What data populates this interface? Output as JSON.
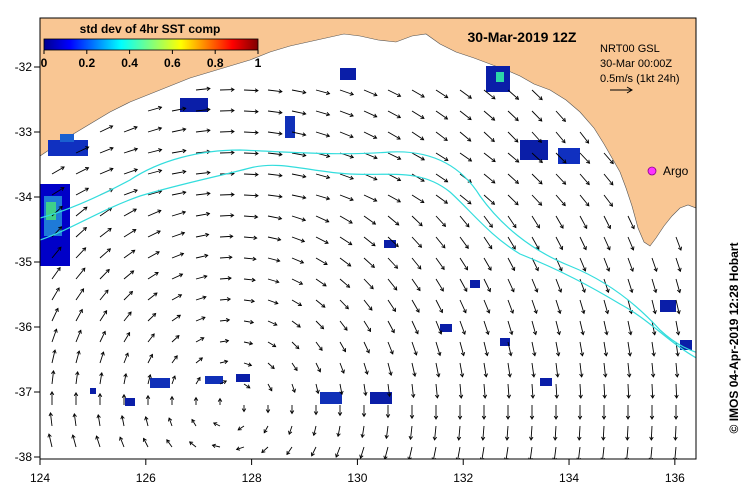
{
  "map": {
    "date_title": "30-Mar-2019 12Z",
    "colorbar": {
      "title": "std dev of 4hr SST comp",
      "ticks": [
        "0",
        "0.2",
        "0.4",
        "0.6",
        "0.8",
        "1"
      ],
      "range": [
        0,
        1
      ]
    },
    "currents": {
      "source": "NRT00 GSL",
      "time": "30-Mar 00:00Z",
      "scale_label": "0.5m/s (1kt 24h)"
    },
    "marker_label": "Argo",
    "marker_color": "#ff33ff",
    "credit": "© IMOS 04-Apr-2019 12:28 Hobart",
    "lon_ticks": [
      "124",
      "126",
      "128",
      "130",
      "132",
      "134",
      "136"
    ],
    "lat_ticks": [
      "-32",
      "-33",
      "-34",
      "-35",
      "-36",
      "-37",
      "-38"
    ],
    "colors": {
      "land": "#f9c693",
      "ocean": "#ffffff",
      "contour": "#33dddd",
      "arrow": "#000000"
    }
  }
}
